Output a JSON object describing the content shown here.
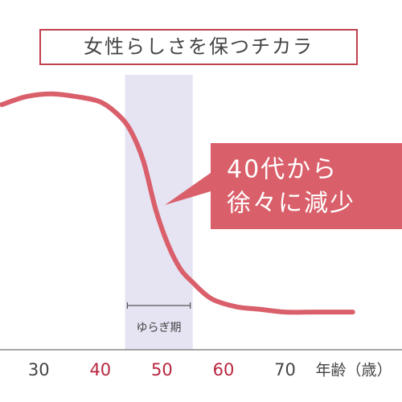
{
  "chart_data": {
    "type": "line",
    "title": "女性らしさを保つチカラ",
    "x": [
      24,
      28,
      32,
      36,
      40,
      43,
      45,
      47,
      49,
      51,
      53,
      55,
      58,
      62,
      66,
      70,
      75,
      81
    ],
    "series": [
      {
        "name": "女性らしさを保つチカラ",
        "color": "#d95f6b",
        "values": [
          91,
          94,
          95,
          94,
          92,
          87,
          81,
          70,
          52,
          39,
          30,
          25,
          19,
          16,
          15,
          14,
          14,
          14
        ]
      }
    ],
    "xlim": [
      23.7,
      89
    ],
    "ylim": [
      0,
      100
    ],
    "xticks": [
      30,
      40,
      50,
      60,
      70
    ],
    "xtick_colors": [
      "#444444",
      "#b8253f",
      "#b8253f",
      "#b8253f",
      "#444444"
    ],
    "xlabel": "年齢（歳）",
    "band": {
      "from": 44,
      "to": 55,
      "label": "ゆらぎ期",
      "color": "#e6e3f3"
    },
    "annotation": [
      "40代から",
      "徐々に減少"
    ],
    "annotation_color": "#d9606a"
  }
}
